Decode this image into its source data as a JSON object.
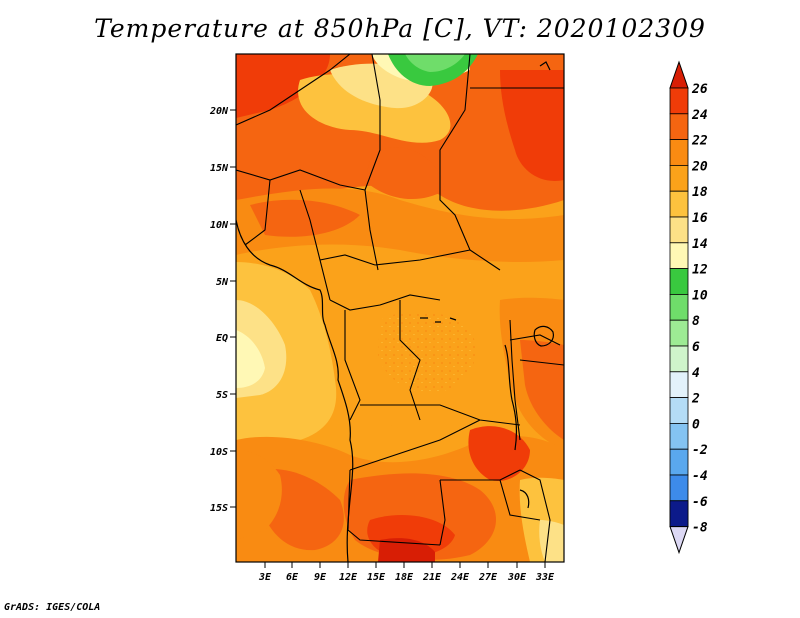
{
  "title": "Temperature at 850hPa [C], VT: 2020102309",
  "footer": "GrADS: IGES/COLA",
  "map": {
    "lat_ticks": [
      "20N",
      "15N",
      "10N",
      "5N",
      "EQ",
      "5S",
      "10S",
      "15S"
    ],
    "lon_ticks": [
      "3E",
      "6E",
      "9E",
      "12E",
      "15E",
      "18E",
      "21E",
      "24E",
      "27E",
      "30E",
      "33E"
    ]
  },
  "colorbar": {
    "levels": [
      "26",
      "24",
      "22",
      "20",
      "18",
      "16",
      "14",
      "12",
      "10",
      "8",
      "6",
      "4",
      "2",
      "0",
      "-2",
      "-4",
      "-6",
      "-8"
    ],
    "colors": [
      "#d81e05",
      "#f03c08",
      "#f56511",
      "#f98b12",
      "#fba21a",
      "#fdc23e",
      "#fde187",
      "#fff8b5",
      "#39c93f",
      "#6fdd6a",
      "#9deb94",
      "#cff4cb",
      "#e3f2fb",
      "#b4dcf6",
      "#84c3f2",
      "#5aa8ee",
      "#3d8bea",
      "#2a6ee2",
      "#1e50d6",
      "#1532b6",
      "#0c1a8a",
      "#081468",
      "#dcd8f4"
    ]
  }
}
